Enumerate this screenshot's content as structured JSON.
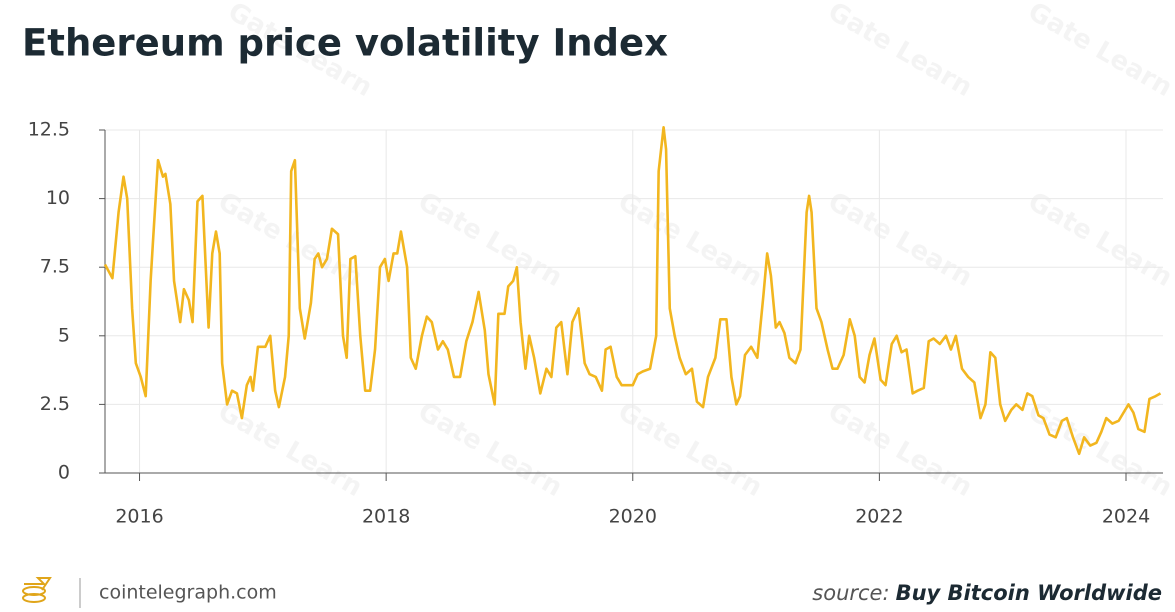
{
  "chart_data": {
    "type": "line",
    "title": "Ethereum price volatility Index",
    "x": [
      2015.72,
      2015.78,
      2015.83,
      2015.87,
      2015.9,
      2015.94,
      2015.97,
      2016.01,
      2016.05,
      2016.09,
      2016.11,
      2016.15,
      2016.19,
      2016.21,
      2016.25,
      2016.28,
      2016.33,
      2016.36,
      2016.4,
      2016.43,
      2016.47,
      2016.51,
      2016.56,
      2016.59,
      2016.62,
      2016.65,
      2016.67,
      2016.71,
      2016.75,
      2016.79,
      2016.83,
      2016.87,
      2016.9,
      2016.92,
      2016.96,
      2017.02,
      2017.06,
      2017.1,
      2017.13,
      2017.18,
      2017.21,
      2017.23,
      2017.26,
      2017.3,
      2017.34,
      2017.39,
      2017.42,
      2017.45,
      2017.48,
      2017.52,
      2017.56,
      2017.61,
      2017.65,
      2017.68,
      2017.71,
      2017.75,
      2017.79,
      2017.83,
      2017.87,
      2017.91,
      2017.95,
      2017.99,
      2018.02,
      2018.06,
      2018.09,
      2018.12,
      2018.17,
      2018.2,
      2018.24,
      2018.29,
      2018.33,
      2018.37,
      2018.42,
      2018.46,
      2018.5,
      2018.55,
      2018.6,
      2018.65,
      2018.7,
      2018.75,
      2018.8,
      2018.83,
      2018.88,
      2018.91,
      2018.96,
      2018.99,
      2019.03,
      2019.06,
      2019.09,
      2019.13,
      2019.16,
      2019.2,
      2019.25,
      2019.3,
      2019.34,
      2019.38,
      2019.42,
      2019.47,
      2019.51,
      2019.56,
      2019.61,
      2019.65,
      2019.7,
      2019.75,
      2019.78,
      2019.82,
      2019.87,
      2019.91,
      2019.95,
      2020.0,
      2020.04,
      2020.08,
      2020.14,
      2020.19,
      2020.21,
      2020.25,
      2020.27,
      2020.3,
      2020.34,
      2020.38,
      2020.43,
      2020.48,
      2020.52,
      2020.57,
      2020.61,
      2020.67,
      2020.71,
      2020.76,
      2020.8,
      2020.84,
      2020.87,
      2020.91,
      2020.96,
      2021.01,
      2021.06,
      2021.09,
      2021.12,
      2021.16,
      2021.19,
      2021.23,
      2021.27,
      2021.32,
      2021.36,
      2021.41,
      2021.43,
      2021.45,
      2021.49,
      2021.53,
      2021.58,
      2021.62,
      2021.66,
      2021.71,
      2021.76,
      2021.8,
      2021.84,
      2021.88,
      2021.92,
      2021.96,
      2022.01,
      2022.05,
      2022.1,
      2022.14,
      2022.18,
      2022.22,
      2022.27,
      2022.31,
      2022.36,
      2022.4,
      2022.44,
      2022.49,
      2022.54,
      2022.58,
      2022.62,
      2022.67,
      2022.72,
      2022.77,
      2022.82,
      2022.86,
      2022.9,
      2022.94,
      2022.98,
      2023.02,
      2023.07,
      2023.11,
      2023.16,
      2023.2,
      2023.24,
      2023.29,
      2023.33,
      2023.38,
      2023.43,
      2023.48,
      2023.52,
      2023.57,
      2023.62,
      2023.66,
      2023.71,
      2023.76,
      2023.8,
      2023.84,
      2023.89,
      2023.94,
      2023.98,
      2024.02,
      2024.06,
      2024.1,
      2024.15,
      2024.19,
      2024.24,
      2024.28
    ],
    "values": [
      7.6,
      7.1,
      9.5,
      10.8,
      10,
      6,
      4,
      3.5,
      2.8,
      7,
      8.5,
      11.4,
      10.8,
      10.9,
      9.8,
      7,
      5.5,
      6.7,
      6.3,
      5.5,
      9.9,
      10.1,
      5.3,
      8,
      8.8,
      8,
      4,
      2.5,
      3,
      2.9,
      2,
      3.2,
      3.5,
      3,
      4.6,
      4.6,
      5,
      3,
      2.4,
      3.5,
      5,
      11,
      11.4,
      6,
      4.9,
      6.2,
      7.8,
      8,
      7.5,
      7.8,
      8.9,
      8.7,
      5,
      4.2,
      7.8,
      7.9,
      5,
      3,
      3,
      4.5,
      7.5,
      7.8,
      7,
      8,
      8,
      8.8,
      7.5,
      4.2,
      3.8,
      5,
      5.7,
      5.5,
      4.5,
      4.8,
      4.5,
      3.5,
      3.5,
      4.8,
      5.5,
      6.6,
      5.2,
      3.6,
      2.5,
      5.8,
      5.8,
      6.8,
      7,
      7.5,
      5.5,
      3.8,
      5,
      4.2,
      2.9,
      3.8,
      3.5,
      5.3,
      5.5,
      3.6,
      5.5,
      6,
      4,
      3.6,
      3.5,
      3,
      4.5,
      4.6,
      3.5,
      3.2,
      3.2,
      3.2,
      3.6,
      3.7,
      3.8,
      5,
      11,
      12.6,
      11.8,
      6,
      5,
      4.2,
      3.6,
      3.8,
      2.6,
      2.4,
      3.5,
      4.2,
      5.6,
      5.6,
      3.5,
      2.5,
      2.8,
      4.3,
      4.6,
      4.2,
      6.5,
      8,
      7.2,
      5.3,
      5.5,
      5.1,
      4.2,
      4,
      4.5,
      9.5,
      10.1,
      9.5,
      6,
      5.5,
      4.5,
      3.8,
      3.8,
      4.3,
      5.6,
      5,
      3.5,
      3.3,
      4.3,
      4.9,
      3.4,
      3.2,
      4.7,
      5,
      4.4,
      4.5,
      2.9,
      3,
      3.1,
      4.8,
      4.9,
      4.7,
      5,
      4.5,
      5,
      3.8,
      3.5,
      3.3,
      2,
      2.5,
      4.4,
      4.2,
      2.5,
      1.9,
      2.3,
      2.5,
      2.3,
      2.9,
      2.8,
      2.1,
      2,
      1.4,
      1.3,
      1.9,
      2,
      1.3,
      0.7,
      1.3,
      1,
      1.1,
      1.5,
      2,
      1.8,
      1.9,
      2.2,
      2.5,
      2.2,
      1.6,
      1.5,
      2.7,
      2.8,
      2.9
    ],
    "color": "#f2b61f",
    "xlim": [
      2015.72,
      2024.3
    ],
    "xticks": [
      2016,
      2018,
      2020,
      2022,
      2024
    ],
    "ylim": [
      0,
      12.5
    ],
    "yticks": [
      0,
      2.5,
      5,
      7.5,
      10,
      12.5
    ],
    "grid": true
  },
  "footer": {
    "site": "cointelegraph.com",
    "source_label": "source:",
    "source": "Buy Bitcoin Worldwide"
  },
  "watermark": "Gate Learn"
}
